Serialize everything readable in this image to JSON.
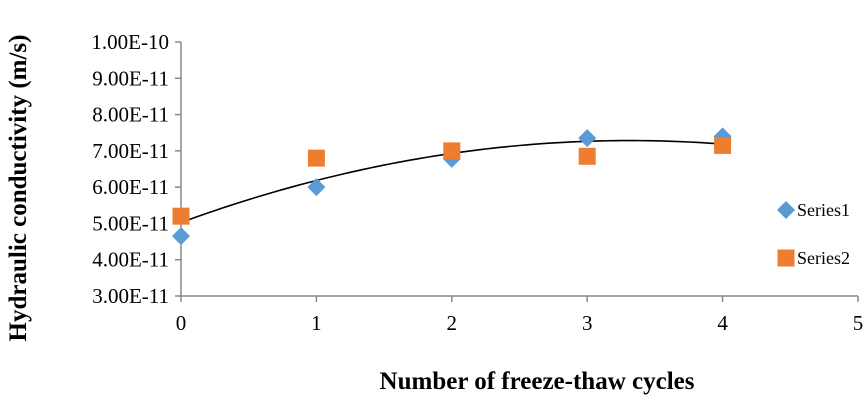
{
  "chart_data": {
    "type": "scatter",
    "title": "",
    "xlabel": "Number of freeze-thaw cycles",
    "ylabel": "Hydraulic conductivity (m/s)",
    "xlim": [
      0,
      5
    ],
    "ylim": [
      3e-11,
      1e-10
    ],
    "x_ticks": [
      "0",
      "1",
      "2",
      "3",
      "4",
      "5"
    ],
    "y_ticks": [
      "3.00E-11",
      "4.00E-11",
      "5.00E-11",
      "6.00E-11",
      "7.00E-11",
      "8.00E-11",
      "9.00E-11",
      "1.00E-10"
    ],
    "grid": false,
    "legend_position": "right",
    "series": [
      {
        "name": "Series1",
        "marker": "diamond",
        "color": "#5B9BD5",
        "x": [
          0,
          1,
          2,
          3,
          4
        ],
        "y": [
          4.65e-11,
          6e-11,
          6.78e-11,
          7.35e-11,
          7.4e-11
        ]
      },
      {
        "name": "Series2",
        "marker": "square",
        "color": "#ED7D31",
        "x": [
          0,
          1,
          2,
          3,
          4
        ],
        "y": [
          5.2e-11,
          6.8e-11,
          7e-11,
          6.85e-11,
          7.15e-11
        ]
      }
    ],
    "trendline": {
      "type": "polynomial-2",
      "color": "#000000",
      "x_range": [
        0,
        4
      ]
    }
  }
}
